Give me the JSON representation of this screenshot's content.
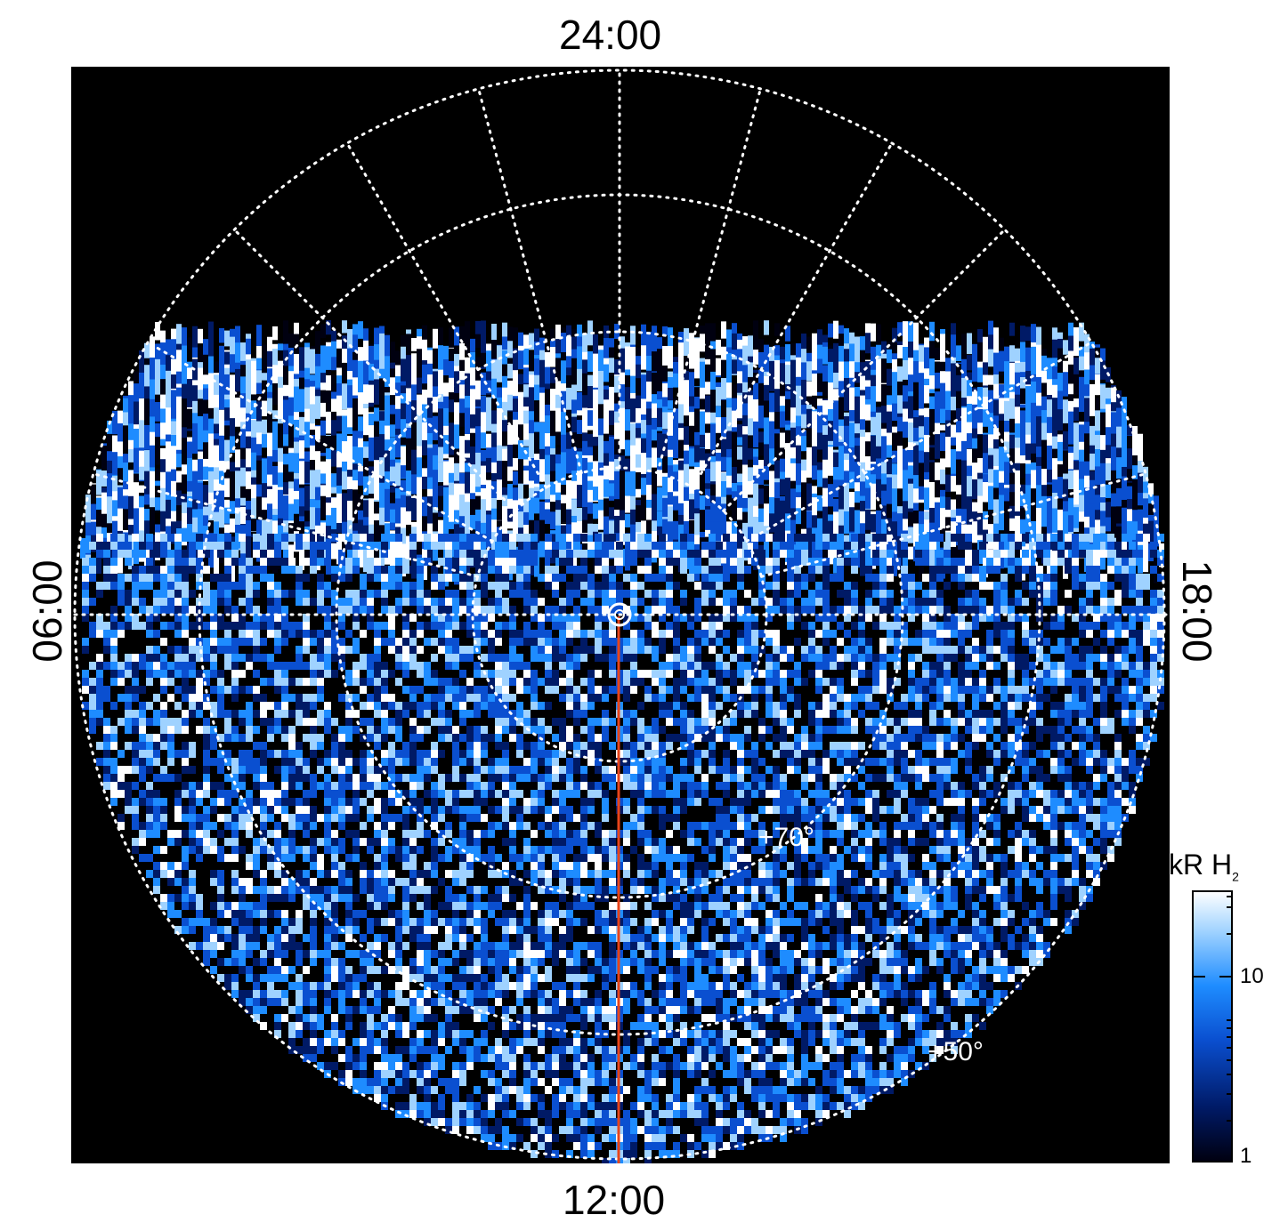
{
  "axes_labels": {
    "top": "24:00",
    "bottom": "12:00",
    "left": "06:00",
    "right": "18:00"
  },
  "lat_labels": [
    "+70°",
    "+50°"
  ],
  "colorbar": {
    "title": "kR H",
    "title_sub": "2",
    "ticks": [
      "10",
      "1"
    ],
    "colors": [
      "#000010",
      "#001a66",
      "#0a4fd0",
      "#1e8cff",
      "#9fd2ff",
      "#ffffff"
    ]
  },
  "colors": {
    "background": "#000000",
    "grid": "#ffffff",
    "meridian": "#e8441a"
  }
}
